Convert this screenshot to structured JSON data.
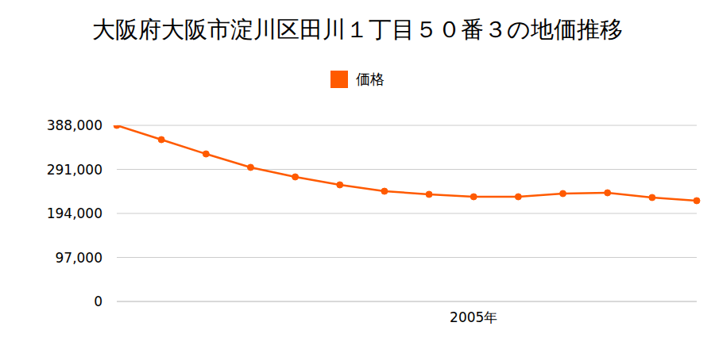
{
  "chart_data": {
    "type": "line",
    "title": "大阪府大阪市淀川区田川１丁目５０番３の地価推移",
    "categories": [
      null,
      null,
      null,
      null,
      null,
      null,
      null,
      null,
      "2005年",
      null,
      null,
      null,
      null,
      null
    ],
    "series": [
      {
        "name": "価格",
        "color": "#ff5a00",
        "values": [
          388000,
          356500,
          325000,
          295400,
          274400,
          256900,
          242900,
          236000,
          230700,
          230700,
          237700,
          239400,
          229000,
          222000
        ]
      }
    ],
    "ylim": [
      0,
      388000
    ],
    "yticks": [
      0,
      {
        "value": 97000,
        "label": "97,000"
      },
      {
        "value": 194000,
        "label": "194,000"
      },
      {
        "value": 291000,
        "label": "291,000"
      },
      {
        "value": 388000,
        "label": "388,000"
      }
    ],
    "grid": true,
    "legend": "top",
    "marker": "circle"
  }
}
